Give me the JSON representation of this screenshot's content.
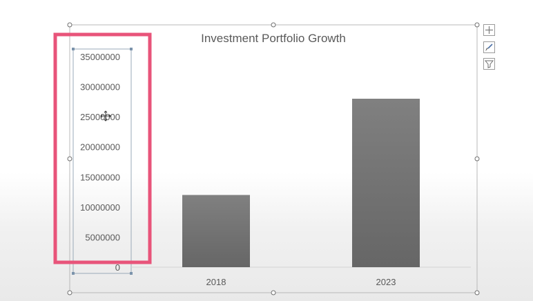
{
  "chart_data": {
    "type": "bar",
    "title": "Investment Portfolio Growth",
    "categories": [
      "2018",
      "2023"
    ],
    "values": [
      12000000,
      28000000
    ],
    "ylim": [
      0,
      35000000
    ],
    "yticks": [
      "0",
      "5000000",
      "10000000",
      "15000000",
      "20000000",
      "25000000",
      "30000000",
      "35000000"
    ],
    "grid": false,
    "legend": "none",
    "bar_color": "#737373",
    "highlight_color": "#e8547a"
  },
  "chart_tools": {
    "elements_icon": "plus-icon",
    "styles_icon": "brush-icon",
    "filters_icon": "filter-icon"
  }
}
